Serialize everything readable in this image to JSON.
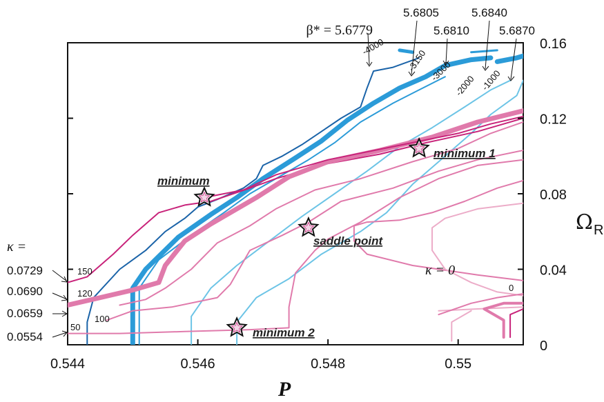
{
  "chart_data": {
    "type": "line",
    "xlabel": "P",
    "ylabel": "Ω",
    "ylabel_sub": "R",
    "xlim": [
      0.544,
      0.551
    ],
    "ylim": [
      0,
      0.16
    ],
    "xticks": [
      "0.544",
      "0.546",
      "0.548",
      "0.55"
    ],
    "yticks": [
      "0",
      "0.04",
      "0.08",
      "0.12",
      "0.16"
    ],
    "beta_header": "β* = 5.6779",
    "beta_labels": [
      "5.6805",
      "5.6810",
      "5.6840",
      "5.6870"
    ],
    "kappa_header": "κ =",
    "kappa_values": [
      "0.0729",
      "0.0690",
      "0.0659",
      "0.0554"
    ],
    "kappa_zero": "κ = 0",
    "colors": {
      "blue_dark": "#1a63a8",
      "blue_main": "#2b9bd8",
      "blue_light": "#6cc4e6",
      "magenta": "#c8237a",
      "pink": "#e07aab",
      "pink_light": "#ecacc8"
    },
    "annotations": [
      {
        "text": "minimum",
        "x": 0.5461,
        "y": 0.078
      },
      {
        "text": "saddle point",
        "x": 0.5477,
        "y": 0.062
      },
      {
        "text": "minimum 1",
        "x": 0.5494,
        "y": 0.104
      },
      {
        "text": "minimum 2",
        "x": 0.5466,
        "y": 0.009
      }
    ],
    "series": [
      {
        "group": "beta",
        "color": "#1a63a8",
        "width": 2,
        "points": [
          [
            0.5443,
            0
          ],
          [
            0.5443,
            0.012
          ],
          [
            0.5444,
            0.025
          ],
          [
            0.5448,
            0.04
          ],
          [
            0.5452,
            0.05
          ],
          [
            0.5455,
            0.06
          ],
          [
            0.5458,
            0.067
          ],
          [
            0.546,
            0.073
          ],
          [
            0.5463,
            0.077
          ],
          [
            0.5467,
            0.083
          ],
          [
            0.5469,
            0.088
          ],
          [
            0.547,
            0.095
          ],
          [
            0.5473,
            0.1
          ],
          [
            0.5476,
            0.106
          ],
          [
            0.5479,
            0.113
          ],
          [
            0.5482,
            0.12
          ],
          [
            0.5485,
            0.126
          ],
          [
            0.5486,
            0.136
          ],
          [
            0.5487,
            0.145
          ],
          [
            0.549,
            0.147
          ],
          [
            0.5494,
            0.152
          ]
        ]
      },
      {
        "group": "beta",
        "color": "#2b9bd8",
        "width": 7,
        "points": [
          [
            0.545,
            0
          ],
          [
            0.545,
            0.03
          ],
          [
            0.5452,
            0.04
          ],
          [
            0.5457,
            0.057
          ],
          [
            0.5462,
            0.069
          ],
          [
            0.5466,
            0.078
          ],
          [
            0.547,
            0.088
          ],
          [
            0.5475,
            0.099
          ],
          [
            0.5479,
            0.108
          ],
          [
            0.5483,
            0.119
          ],
          [
            0.5487,
            0.128
          ],
          [
            0.5491,
            0.136
          ],
          [
            0.5495,
            0.142
          ],
          [
            0.5498,
            0.148
          ],
          [
            0.5502,
            0.151
          ],
          [
            0.5505,
            0.152
          ]
        ]
      },
      {
        "group": "beta",
        "color": "#2b9bd8",
        "width": 7,
        "points": [
          [
            0.5506,
            0.15
          ],
          [
            0.5509,
            0.152
          ],
          [
            0.5512,
            0.155
          ]
        ]
      },
      {
        "group": "beta",
        "color": "#2b9bd8",
        "width": 5,
        "points": [
          [
            0.5491,
            0.156
          ],
          [
            0.5493,
            0.155
          ]
        ]
      },
      {
        "group": "beta",
        "color": "#2b9bd8",
        "width": 3,
        "points": [
          [
            0.5502,
            0.155
          ],
          [
            0.5506,
            0.156
          ]
        ]
      },
      {
        "group": "beta",
        "color": "#2b9bd8",
        "width": 2,
        "points": [
          [
            0.5451,
            0
          ],
          [
            0.5451,
            0.03
          ],
          [
            0.5454,
            0.045
          ],
          [
            0.5459,
            0.058
          ],
          [
            0.5464,
            0.07
          ],
          [
            0.5468,
            0.08
          ],
          [
            0.5472,
            0.088
          ],
          [
            0.5477,
            0.098
          ],
          [
            0.5481,
            0.107
          ],
          [
            0.5485,
            0.118
          ],
          [
            0.549,
            0.128
          ],
          [
            0.5494,
            0.135
          ],
          [
            0.5498,
            0.142
          ]
        ]
      },
      {
        "group": "beta",
        "color": "#6cc4e6",
        "width": 2,
        "points": [
          [
            0.5459,
            0
          ],
          [
            0.5459,
            0.015
          ],
          [
            0.5462,
            0.03
          ],
          [
            0.5466,
            0.042
          ],
          [
            0.5471,
            0.055
          ],
          [
            0.5476,
            0.068
          ],
          [
            0.5481,
            0.08
          ],
          [
            0.5486,
            0.092
          ],
          [
            0.5491,
            0.105
          ],
          [
            0.5496,
            0.115
          ],
          [
            0.5501,
            0.126
          ],
          [
            0.5505,
            0.135
          ],
          [
            0.5508,
            0.14
          ]
        ]
      },
      {
        "group": "beta",
        "color": "#6cc4e6",
        "width": 2,
        "points": [
          [
            0.5466,
            0
          ],
          [
            0.5466,
            0.012
          ],
          [
            0.5469,
            0.025
          ],
          [
            0.5474,
            0.035
          ],
          [
            0.5479,
            0.048
          ],
          [
            0.5485,
            0.06
          ],
          [
            0.5489,
            0.07
          ],
          [
            0.5493,
            0.085
          ],
          [
            0.5498,
            0.1
          ],
          [
            0.5502,
            0.112
          ],
          [
            0.5505,
            0.122
          ],
          [
            0.5509,
            0.132
          ],
          [
            0.551,
            0.14
          ]
        ]
      },
      {
        "group": "kappa",
        "color": "#c8237a",
        "width": 2,
        "points": [
          [
            0.544,
            0.033
          ],
          [
            0.5443,
            0.036
          ],
          [
            0.5447,
            0.048
          ],
          [
            0.545,
            0.058
          ],
          [
            0.5454,
            0.07
          ],
          [
            0.5458,
            0.074
          ],
          [
            0.5462,
            0.076
          ],
          [
            0.5468,
            0.083
          ],
          [
            0.5472,
            0.088
          ],
          [
            0.548,
            0.096
          ],
          [
            0.5488,
            0.101
          ],
          [
            0.5495,
            0.107
          ],
          [
            0.5503,
            0.113
          ],
          [
            0.551,
            0.12
          ]
        ]
      },
      {
        "group": "kappa",
        "color": "#e07aab",
        "width": 7,
        "points": [
          [
            0.544,
            0.021
          ],
          [
            0.5445,
            0.025
          ],
          [
            0.545,
            0.029
          ],
          [
            0.5454,
            0.033
          ],
          [
            0.5455,
            0.042
          ],
          [
            0.5458,
            0.055
          ],
          [
            0.5462,
            0.064
          ],
          [
            0.5465,
            0.07
          ],
          [
            0.5469,
            0.078
          ],
          [
            0.5474,
            0.089
          ],
          [
            0.548,
            0.097
          ],
          [
            0.5488,
            0.103
          ],
          [
            0.5496,
            0.11
          ],
          [
            0.5503,
            0.118
          ],
          [
            0.551,
            0.124
          ]
        ]
      },
      {
        "group": "kappa",
        "color": "#c8237a",
        "width": 2,
        "points": [
          [
            0.5461,
            0.078
          ],
          [
            0.5467,
            0.082
          ],
          [
            0.5472,
            0.09
          ],
          [
            0.548,
            0.098
          ],
          [
            0.549,
            0.105
          ],
          [
            0.55,
            0.112
          ],
          [
            0.5505,
            0.117
          ],
          [
            0.551,
            0.121
          ]
        ]
      },
      {
        "group": "kappa",
        "color": "#e07aab",
        "width": 2,
        "points": [
          [
            0.5448,
            0.021
          ],
          [
            0.5452,
            0.024
          ],
          [
            0.5455,
            0.03
          ],
          [
            0.5459,
            0.04
          ],
          [
            0.5463,
            0.054
          ],
          [
            0.5468,
            0.063
          ],
          [
            0.5472,
            0.072
          ],
          [
            0.5478,
            0.082
          ],
          [
            0.5485,
            0.088
          ],
          [
            0.5493,
            0.097
          ],
          [
            0.55,
            0.104
          ],
          [
            0.5505,
            0.112
          ],
          [
            0.551,
            0.118
          ]
        ]
      },
      {
        "group": "kappa",
        "color": "#e07aab",
        "width": 2,
        "points": [
          [
            0.5446,
            0.013
          ],
          [
            0.545,
            0.018
          ],
          [
            0.5456,
            0.02
          ],
          [
            0.5463,
            0.025
          ],
          [
            0.5465,
            0.032
          ],
          [
            0.5468,
            0.05
          ],
          [
            0.5473,
            0.058
          ],
          [
            0.5477,
            0.065
          ],
          [
            0.5482,
            0.076
          ],
          [
            0.549,
            0.083
          ],
          [
            0.5497,
            0.092
          ],
          [
            0.5503,
            0.098
          ],
          [
            0.551,
            0.103
          ]
        ]
      },
      {
        "group": "kappa",
        "color": "#e07aab",
        "width": 2,
        "points": [
          [
            0.544,
            0.006
          ],
          [
            0.5448,
            0.006
          ],
          [
            0.5458,
            0.007
          ],
          [
            0.5468,
            0.008
          ],
          [
            0.5474,
            0.009
          ],
          [
            0.5474,
            0.02
          ],
          [
            0.5475,
            0.038
          ],
          [
            0.5478,
            0.05
          ],
          [
            0.548,
            0.056
          ],
          [
            0.5485,
            0.065
          ],
          [
            0.5491,
            0.078
          ],
          [
            0.5497,
            0.088
          ],
          [
            0.5503,
            0.095
          ],
          [
            0.551,
            0.098
          ]
        ]
      },
      {
        "group": "kappa",
        "color": "#e07aab",
        "width": 2,
        "points": [
          [
            0.551,
            0.087
          ],
          [
            0.5506,
            0.083
          ],
          [
            0.5501,
            0.076
          ],
          [
            0.5496,
            0.07
          ],
          [
            0.5491,
            0.066
          ],
          [
            0.5486,
            0.065
          ],
          [
            0.5484,
            0.063
          ],
          [
            0.5484,
            0.055
          ],
          [
            0.5486,
            0.048
          ],
          [
            0.5493,
            0.042
          ],
          [
            0.5503,
            0.037
          ],
          [
            0.551,
            0.034
          ]
        ]
      },
      {
        "group": "kappa",
        "color": "#ecacc8",
        "width": 2,
        "points": [
          [
            0.551,
            0.075
          ],
          [
            0.5503,
            0.072
          ],
          [
            0.5498,
            0.067
          ],
          [
            0.5496,
            0.062
          ],
          [
            0.5496,
            0.05
          ],
          [
            0.5498,
            0.04
          ],
          [
            0.5502,
            0.033
          ],
          [
            0.5506,
            0.028
          ],
          [
            0.551,
            0.026
          ]
        ]
      },
      {
        "group": "kappa",
        "color": "#ecacc8",
        "width": 2,
        "points": [
          [
            0.5497,
            0.018
          ],
          [
            0.5503,
            0.019
          ],
          [
            0.551,
            0.02
          ]
        ]
      },
      {
        "group": "kappa",
        "color": "#e07aab",
        "width": 2,
        "points": [
          [
            0.5497,
            0.016
          ],
          [
            0.5502,
            0.022
          ],
          [
            0.5506,
            0.025
          ],
          [
            0.551,
            0.027
          ]
        ]
      },
      {
        "group": "kappa",
        "color": "#e07aab",
        "width": 4,
        "points": [
          [
            0.551,
            0.022
          ],
          [
            0.5507,
            0.022
          ],
          [
            0.5504,
            0.019
          ],
          [
            0.5507,
            0.013
          ],
          [
            0.5507,
            0.004
          ]
        ]
      },
      {
        "group": "kappa",
        "color": "#c8237a",
        "width": 2,
        "points": [
          [
            0.551,
            0.019
          ],
          [
            0.5508,
            0.016
          ],
          [
            0.5508,
            0.004
          ]
        ]
      },
      {
        "group": "kappa",
        "color": "#ecacc8",
        "width": 2,
        "points": [
          [
            0.5499,
            0.002
          ],
          [
            0.5499,
            0.012
          ],
          [
            0.5502,
            0.018
          ]
        ]
      }
    ]
  }
}
